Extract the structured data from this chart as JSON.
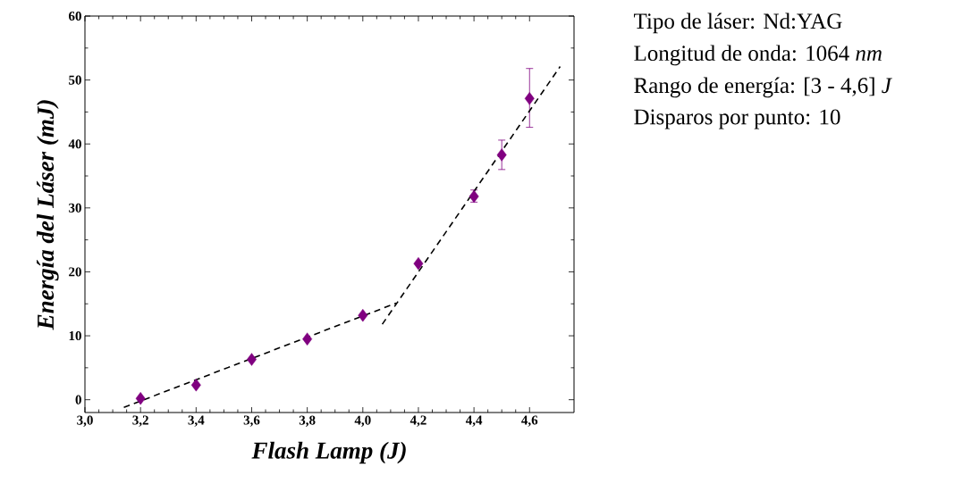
{
  "chart_data": {
    "type": "scatter",
    "xlabel": "Flash Lamp (J)",
    "ylabel": "Energía del Láser  (mJ)",
    "xlim": [
      3.0,
      4.76
    ],
    "ylim": [
      -2,
      60
    ],
    "xticks": [
      {
        "value": 3.0,
        "label": "3,0"
      },
      {
        "value": 3.2,
        "label": "3,2"
      },
      {
        "value": 3.4,
        "label": "3,4"
      },
      {
        "value": 3.6,
        "label": "3,6"
      },
      {
        "value": 3.8,
        "label": "3,8"
      },
      {
        "value": 4.0,
        "label": "4,0"
      },
      {
        "value": 4.2,
        "label": "4,2"
      },
      {
        "value": 4.4,
        "label": "4,4"
      },
      {
        "value": 4.6,
        "label": "4,6"
      }
    ],
    "yticks": [
      0,
      10,
      20,
      30,
      40,
      50,
      60
    ],
    "grid": false,
    "series": [
      {
        "color": "#800080",
        "marker": "diamond",
        "x": [
          3.2,
          3.4,
          3.6,
          3.8,
          4.0,
          4.2,
          4.4,
          4.5,
          4.6
        ],
        "values": [
          0.2,
          2.3,
          6.3,
          9.5,
          13.2,
          21.3,
          31.8,
          38.3,
          47.1
        ],
        "errors": [
          null,
          null,
          null,
          null,
          null,
          null,
          [
            30.9,
            32.8
          ],
          [
            36.0,
            40.6
          ],
          [
            42.6,
            51.8
          ]
        ]
      },
      {
        "type": "line",
        "color": "#000000",
        "marker": "none",
        "line_style": "dashed",
        "x": [
          3.14,
          4.12
        ],
        "values": [
          -1.2,
          15.1
        ]
      },
      {
        "type": "line",
        "color": "#000000",
        "marker": "none",
        "line_style": "dashed",
        "x": [
          4.07,
          4.71
        ],
        "values": [
          11.8,
          52.1
        ]
      }
    ],
    "annotations": [
      "Tipo de láser:      Nd:YAG",
      "Longitud de onda:   1064 *nm*",
      "Rango de energía:  [3 - 4,6] *J*",
      "Disparos por punto:  10"
    ]
  }
}
